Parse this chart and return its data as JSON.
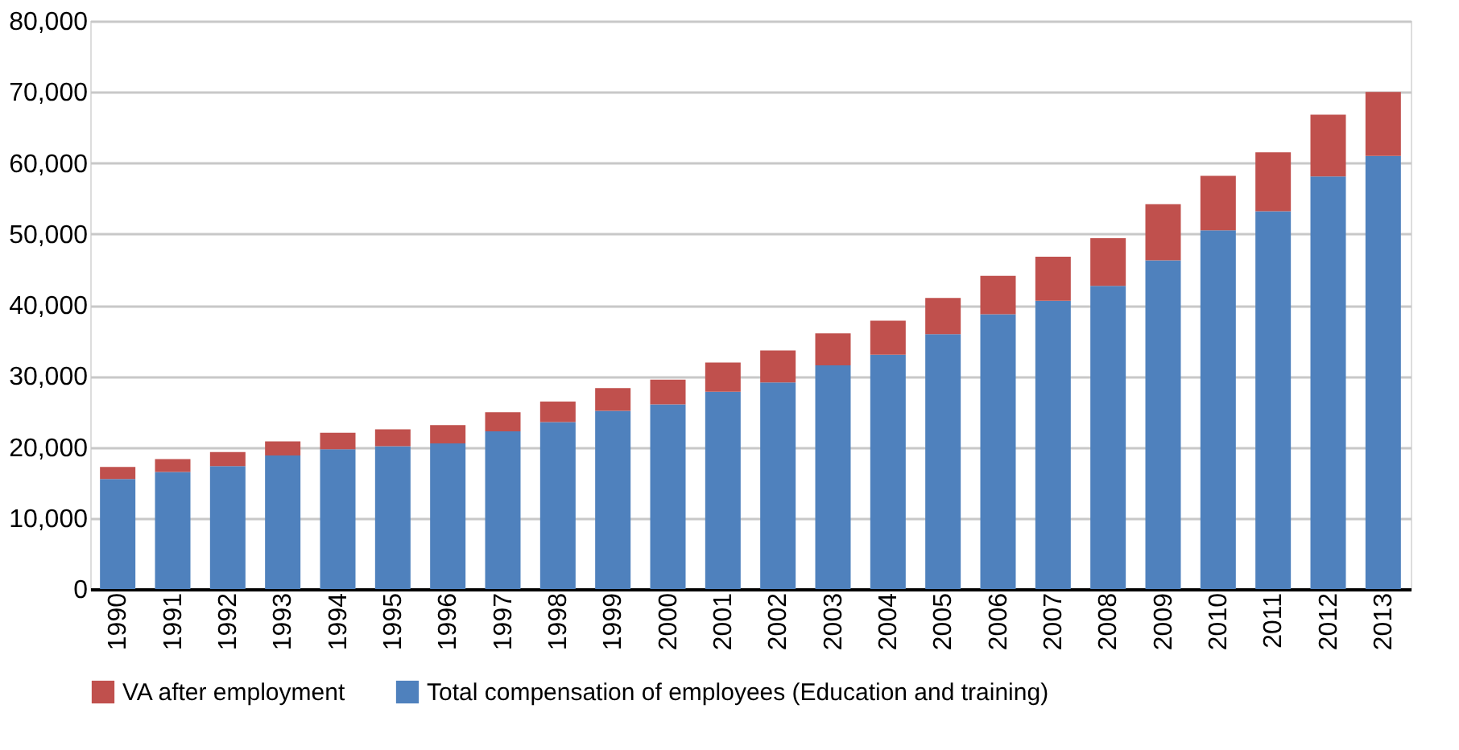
{
  "chart_data": {
    "type": "bar",
    "stacked": true,
    "categories": [
      "1990",
      "1991",
      "1992",
      "1993",
      "1994",
      "1995",
      "1996",
      "1997",
      "1998",
      "1999",
      "2000",
      "2001",
      "2002",
      "2003",
      "2004",
      "2005",
      "2006",
      "2007",
      "2008",
      "2009",
      "2010",
      "2011",
      "2012",
      "2013"
    ],
    "series": [
      {
        "name": "Total compensation of employees (Education and training)",
        "color": "#4f81bd",
        "values": [
          15500,
          16500,
          17300,
          18800,
          19700,
          20100,
          20500,
          22200,
          23500,
          25100,
          26000,
          27800,
          29100,
          31500,
          33000,
          35900,
          38700,
          40600,
          42700,
          46300,
          50500,
          53200,
          58100,
          61000
        ]
      },
      {
        "name": "VA after employment",
        "color": "#c0504d",
        "values": [
          1700,
          1800,
          2000,
          2000,
          2300,
          2400,
          2600,
          2700,
          2900,
          3200,
          3500,
          4100,
          4500,
          4500,
          4800,
          5100,
          5400,
          6200,
          6700,
          7900,
          7700,
          8300,
          8700,
          9000
        ]
      }
    ],
    "ylim": [
      0,
      80000
    ],
    "yticks": [
      0,
      {
        "value": 10000,
        "label": "10,000"
      },
      {
        "value": 20000,
        "label": "20,000"
      },
      {
        "value": 30000,
        "label": "30,000"
      },
      {
        "value": 40000,
        "label": "40,000"
      },
      {
        "value": 50000,
        "label": "50,000"
      },
      {
        "value": 60000,
        "label": "60,000"
      },
      {
        "value": 70000,
        "label": "70,000"
      },
      {
        "value": 80000,
        "label": "80,000"
      }
    ],
    "grid": "y",
    "legend": "bottom"
  }
}
